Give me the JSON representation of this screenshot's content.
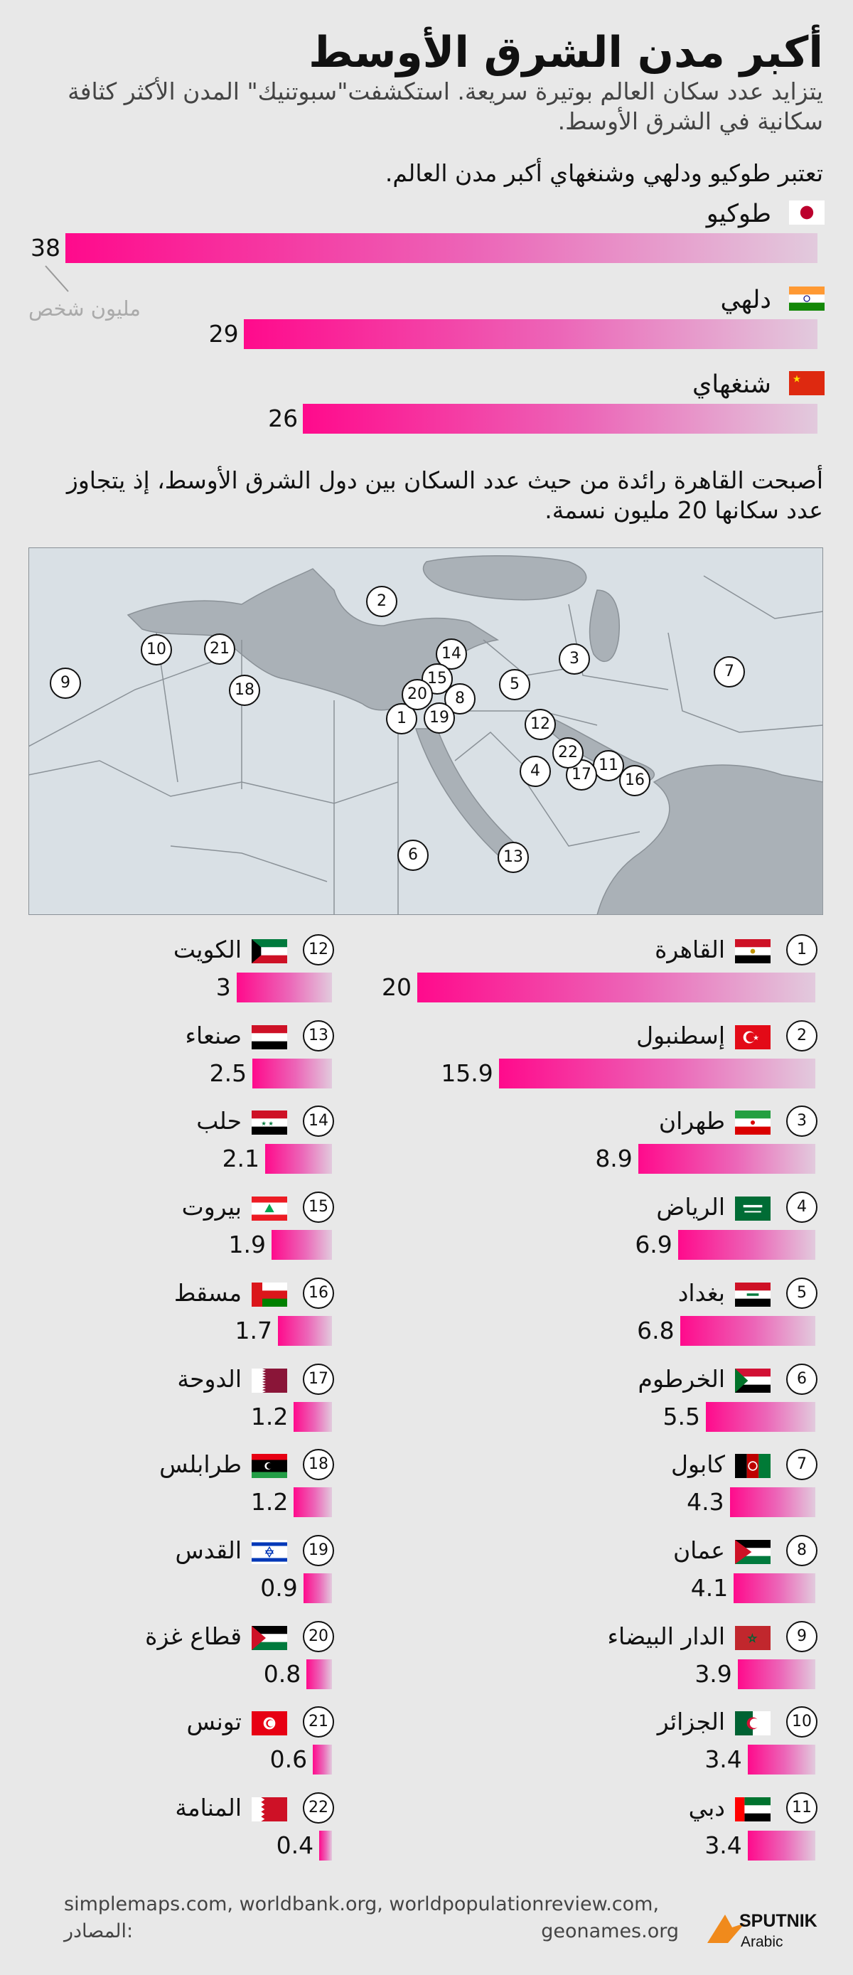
{
  "header": {
    "title": "أكبر مدن الشرق الأوسط",
    "subtitle": "يتزايد عدد سكان العالم بوتيرة سريعة. استكشفت\"سبوتنيك\" المدن الأكثر كثافة سكانية في الشرق الأوسط.",
    "intro_world": "تعتبر طوكيو ودلهي وشنغهاي أكبر مدن العالم.",
    "intro_mideast": "أصبحت القاهرة رائدة من حيث عدد السكان بين دول الشرق الأوسط، إذ يتجاوز عدد سكانها 20 مليون نسمة."
  },
  "colors": {
    "bar_start": "#ff0a8c",
    "bar_end": "#e2cadd",
    "background": "#e8e8e8",
    "land": "#d9e0e5",
    "sea": "#aab1b7"
  },
  "world_cities": [
    {
      "name": "طوكيو",
      "value": 38,
      "value_label": "38",
      "flag": "japan-flag"
    },
    {
      "name": "دلهي",
      "value": 29,
      "value_label": "29",
      "flag": "india-flag"
    },
    {
      "name": "شنغهاي",
      "value": 26,
      "value_label": "26",
      "flag": "china-flag"
    }
  ],
  "unit_label": "مليون شخص",
  "map_markers": [
    "1",
    "2",
    "3",
    "4",
    "5",
    "6",
    "7",
    "8",
    "9",
    "10",
    "11",
    "12",
    "13",
    "14",
    "15",
    "16",
    "17",
    "18",
    "19",
    "20",
    "21",
    "22"
  ],
  "chart_data": {
    "type": "bar",
    "unit": "مليون شخص",
    "categories": [
      "القاهرة",
      "إسطنبول",
      "طهران",
      "الرياض",
      "بغداد",
      "الخرطوم",
      "كابول",
      "عمان",
      "الدار البيضاء",
      "الجزائر",
      "دبي",
      "الكويت",
      "صنعاء",
      "حلب",
      "بيروت",
      "مسقط",
      "الدوحة",
      "طرابلس",
      "القدس",
      "قطاع غزة",
      "تونس",
      "المنامة"
    ],
    "values": [
      20,
      15.9,
      8.9,
      6.9,
      6.8,
      5.5,
      4.3,
      4.1,
      3.9,
      3.4,
      3.4,
      3,
      2.5,
      2.1,
      1.9,
      1.7,
      1.2,
      1.2,
      0.9,
      0.8,
      0.6,
      0.4
    ]
  },
  "cities": [
    {
      "rank": "1",
      "name": "القاهرة",
      "value": 20,
      "value_label": "20",
      "flag": "egypt-flag"
    },
    {
      "rank": "2",
      "name": "إسطنبول",
      "value": 15.9,
      "value_label": "15.9",
      "flag": "turkey-flag"
    },
    {
      "rank": "3",
      "name": "طهران",
      "value": 8.9,
      "value_label": "8.9",
      "flag": "iran-flag"
    },
    {
      "rank": "4",
      "name": "الرياض",
      "value": 6.9,
      "value_label": "6.9",
      "flag": "saudi-flag"
    },
    {
      "rank": "5",
      "name": "بغداد",
      "value": 6.8,
      "value_label": "6.8",
      "flag": "iraq-flag"
    },
    {
      "rank": "6",
      "name": "الخرطوم",
      "value": 5.5,
      "value_label": "5.5",
      "flag": "sudan-flag"
    },
    {
      "rank": "7",
      "name": "كابول",
      "value": 4.3,
      "value_label": "4.3",
      "flag": "afghanistan-flag"
    },
    {
      "rank": "8",
      "name": "عمان",
      "value": 4.1,
      "value_label": "4.1",
      "flag": "jordan-flag"
    },
    {
      "rank": "9",
      "name": "الدار البيضاء",
      "value": 3.9,
      "value_label": "3.9",
      "flag": "morocco-flag"
    },
    {
      "rank": "10",
      "name": "الجزائر",
      "value": 3.4,
      "value_label": "3.4",
      "flag": "algeria-flag"
    },
    {
      "rank": "11",
      "name": "دبي",
      "value": 3.4,
      "value_label": "3.4",
      "flag": "uae-flag"
    },
    {
      "rank": "12",
      "name": "الكويت",
      "value": 3,
      "value_label": "3",
      "flag": "kuwait-flag"
    },
    {
      "rank": "13",
      "name": "صنعاء",
      "value": 2.5,
      "value_label": "2.5",
      "flag": "yemen-flag"
    },
    {
      "rank": "14",
      "name": "حلب",
      "value": 2.1,
      "value_label": "2.1",
      "flag": "syria-flag"
    },
    {
      "rank": "15",
      "name": "بيروت",
      "value": 1.9,
      "value_label": "1.9",
      "flag": "lebanon-flag"
    },
    {
      "rank": "16",
      "name": "مسقط",
      "value": 1.7,
      "value_label": "1.7",
      "flag": "oman-flag"
    },
    {
      "rank": "17",
      "name": "الدوحة",
      "value": 1.2,
      "value_label": "1.2",
      "flag": "qatar-flag"
    },
    {
      "rank": "18",
      "name": "طرابلس",
      "value": 1.2,
      "value_label": "1.2",
      "flag": "libya-flag"
    },
    {
      "rank": "19",
      "name": "القدس",
      "value": 0.9,
      "value_label": "0.9",
      "flag": "israel-flag"
    },
    {
      "rank": "20",
      "name": "قطاع غزة",
      "value": 0.8,
      "value_label": "0.8",
      "flag": "palestine-flag"
    },
    {
      "rank": "21",
      "name": "تونس",
      "value": 0.6,
      "value_label": "0.6",
      "flag": "tunisia-flag"
    },
    {
      "rank": "22",
      "name": "المنامة",
      "value": 0.4,
      "value_label": "0.4",
      "flag": "bahrain-flag"
    }
  ],
  "footer": {
    "sources_label": "المصادر:",
    "sources_line1": "simplemaps.com, worldbank.org, worldpopulationreview.com,",
    "sources_line2": "geonames.org",
    "logo_text": "SPUTNIK",
    "logo_sub": "Arabic"
  }
}
